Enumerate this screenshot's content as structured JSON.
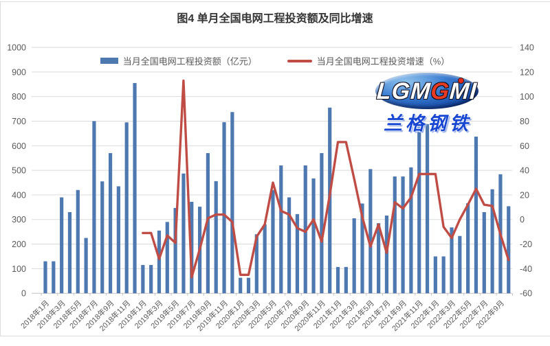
{
  "page": {
    "title": "图4 单月全国电网工程投资额及同比增速"
  },
  "legend": [
    {
      "label": "当月全国电网工程投资额（亿元）",
      "type": "bar",
      "color": "#4e79b0"
    },
    {
      "label": "当月全国电网工程投资增速（%）",
      "type": "line",
      "color": "#bf4c45"
    }
  ],
  "logo": {
    "word": "LGM",
    "word_tail": "I",
    "subtext": "兰格钢铁"
  },
  "chart_data": {
    "type": "bar",
    "title": "图4 单月全国电网工程投资额及同比增速",
    "xlabel": "",
    "ylabel_left": "当月全国电网工程投资额（亿元）",
    "ylabel_right": "当月全国电网工程投资增速（%）",
    "grid": true,
    "legend_position": "top",
    "x_label_interval": 2,
    "left_axis": {
      "min": 0,
      "max": 1000,
      "step": 100
    },
    "right_axis": {
      "min": -60,
      "max": 140,
      "step": 20
    },
    "categories": [
      "2018年1月",
      "2018年2月",
      "2018年3月",
      "2018年4月",
      "2018年5月",
      "2018年6月",
      "2018年7月",
      "2018年8月",
      "2018年9月",
      "2018年10月",
      "2018年11月",
      "2018年12月",
      "2019年1月",
      "2019年2月",
      "2019年3月",
      "2019年4月",
      "2019年5月",
      "2019年6月",
      "2019年7月",
      "2019年8月",
      "2019年9月",
      "2019年10月",
      "2019年11月",
      "2019年12月",
      "2020年1月",
      "2020年2月",
      "2020年3月",
      "2020年4月",
      "2020年5月",
      "2020年6月",
      "2020年7月",
      "2020年8月",
      "2020年9月",
      "2020年10月",
      "2020年11月",
      "2020年12月",
      "2021年1月",
      "2021年2月",
      "2021年3月",
      "2021年4月",
      "2021年5月",
      "2021年6月",
      "2021年7月",
      "2021年8月",
      "2021年9月",
      "2021年10月",
      "2021年11月",
      "2021年12月",
      "2022年1月",
      "2022年2月",
      "2022年3月",
      "2022年4月",
      "2022年5月",
      "2022年6月",
      "2022年7月",
      "2022年8月",
      "2022年9月",
      "2022年10月"
    ],
    "series": [
      {
        "name": "当月全国电网工程投资额（亿元）",
        "type": "bar",
        "axis": "left",
        "color": "#4e79b0",
        "start_index": 0,
        "values": [
          130,
          130,
          390,
          330,
          420,
          225,
          700,
          455,
          570,
          435,
          695,
          855,
          115,
          115,
          255,
          290,
          347,
          487,
          372,
          352,
          570,
          456,
          696,
          737,
          63,
          63,
          240,
          280,
          420,
          520,
          390,
          322,
          520,
          467,
          570,
          755,
          107,
          107,
          305,
          365,
          505,
          285,
          316,
          475,
          475,
          512,
          690,
          688,
          150,
          150,
          268,
          233,
          366,
          637,
          330,
          423,
          484,
          354
        ]
      },
      {
        "name": "当月全国电网工程投资增速（%）",
        "type": "line",
        "axis": "right",
        "color": "#bf4c45",
        "start_index": 12,
        "values": [
          -11,
          -11,
          -32,
          -13,
          -19,
          113,
          -47,
          -24,
          1,
          4,
          4,
          -2,
          -45,
          -45,
          -14,
          -4,
          30,
          7,
          4,
          -7,
          -10,
          0,
          -18,
          20,
          63,
          63,
          33,
          2,
          -22,
          -4,
          -27,
          14,
          9,
          18,
          37,
          37,
          37,
          -6,
          -15,
          0,
          12,
          25,
          12,
          11,
          -12,
          -33
        ]
      }
    ]
  }
}
